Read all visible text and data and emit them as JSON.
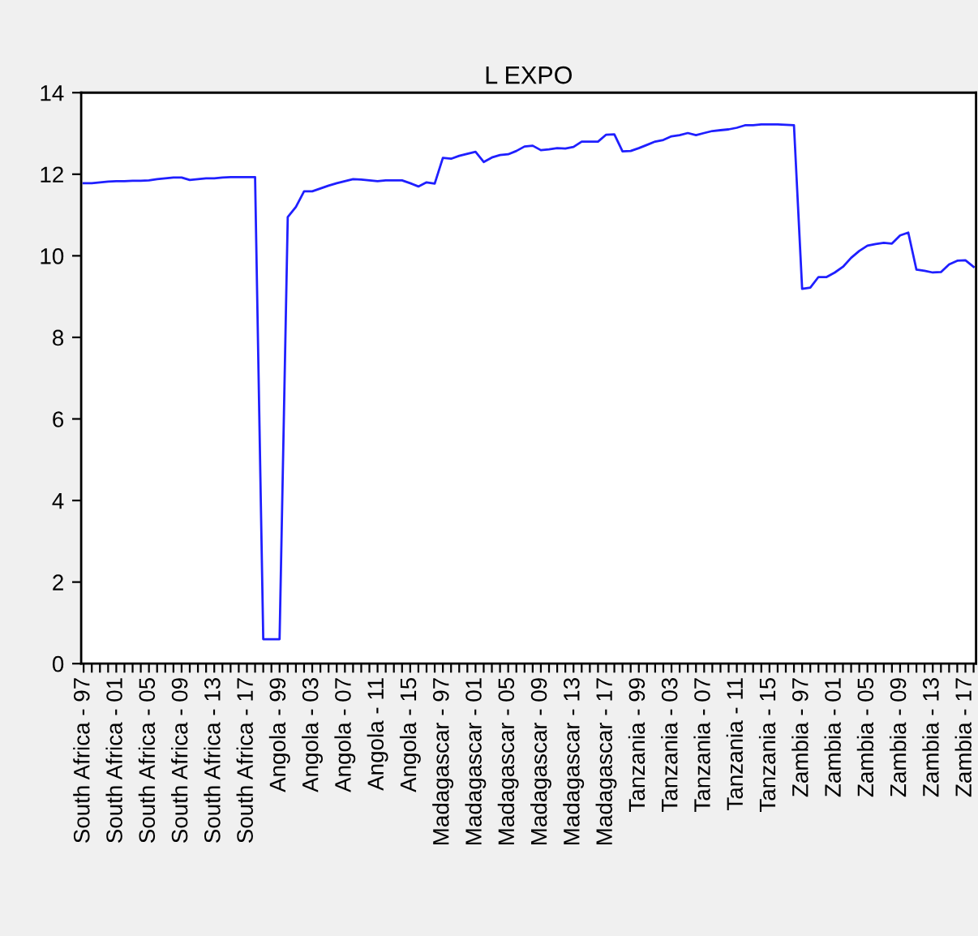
{
  "chart_data": {
    "type": "line",
    "title": "L EXPO",
    "categories": [
      "South Africa - 97",
      null,
      null,
      null,
      "South Africa - 01",
      null,
      null,
      null,
      "South Africa - 05",
      null,
      null,
      null,
      "South Africa - 09",
      null,
      null,
      null,
      "South Africa - 13",
      null,
      null,
      null,
      "South Africa - 17",
      null,
      null,
      null,
      "Angola - 99",
      null,
      null,
      null,
      "Angola - 03",
      null,
      null,
      null,
      "Angola - 07",
      null,
      null,
      null,
      "Angola - 11",
      null,
      null,
      null,
      "Angola - 15",
      null,
      null,
      null,
      "Madagascar - 97",
      null,
      null,
      null,
      "Madagascar - 01",
      null,
      null,
      null,
      "Madagascar - 05",
      null,
      null,
      null,
      "Madagascar - 09",
      null,
      null,
      null,
      "Madagascar - 13",
      null,
      null,
      null,
      "Madagascar - 17",
      null,
      null,
      null,
      "Tanzania - 99",
      null,
      null,
      null,
      "Tanzania - 03",
      null,
      null,
      null,
      "Tanzania - 07",
      null,
      null,
      null,
      "Tanzania - 11",
      null,
      null,
      null,
      "Tanzania - 15",
      null,
      null,
      null,
      "Zambia - 97",
      null,
      null,
      null,
      "Zambia - 01",
      null,
      null,
      null,
      "Zambia - 05",
      null,
      null,
      null,
      "Zambia - 09",
      null,
      null,
      null,
      "Zambia - 13",
      null,
      null,
      null,
      "Zambia - 17",
      null
    ],
    "series": [
      {
        "color": "#1f1fff",
        "values": [
          11.78,
          11.78,
          11.8,
          11.82,
          11.83,
          11.83,
          11.84,
          11.84,
          11.85,
          11.88,
          11.9,
          11.92,
          11.92,
          11.86,
          11.88,
          11.9,
          11.9,
          11.92,
          11.93,
          11.93,
          11.93,
          11.93,
          0.6,
          0.6,
          0.6,
          10.95,
          11.2,
          11.58,
          11.58,
          11.65,
          11.72,
          11.78,
          11.83,
          11.88,
          11.87,
          11.85,
          11.83,
          11.85,
          11.85,
          11.85,
          11.78,
          11.7,
          11.8,
          11.77,
          12.4,
          12.38,
          12.45,
          12.5,
          12.55,
          12.3,
          12.41,
          12.47,
          12.49,
          12.57,
          12.68,
          12.7,
          12.59,
          12.61,
          12.64,
          12.63,
          12.67,
          12.8,
          12.8,
          12.8,
          12.97,
          12.98,
          12.56,
          12.57,
          12.64,
          12.72,
          12.8,
          12.84,
          12.93,
          12.96,
          13.01,
          12.96,
          13.01,
          13.06,
          13.08,
          13.1,
          13.14,
          13.2,
          13.2,
          13.22,
          13.22,
          13.22,
          13.21,
          13.2,
          9.19,
          9.22,
          9.48,
          9.48,
          9.59,
          9.73,
          9.95,
          10.12,
          10.25,
          10.29,
          10.32,
          10.3,
          10.5,
          10.57,
          9.66,
          9.63,
          9.59,
          9.6,
          9.79,
          9.88,
          9.89,
          9.73
        ]
      }
    ],
    "ylim": [
      0,
      14
    ],
    "yticks": [
      0,
      2,
      4,
      6,
      8,
      10,
      12,
      14
    ],
    "grid": false,
    "legend": false,
    "marker": "none",
    "line_style": "solid"
  }
}
